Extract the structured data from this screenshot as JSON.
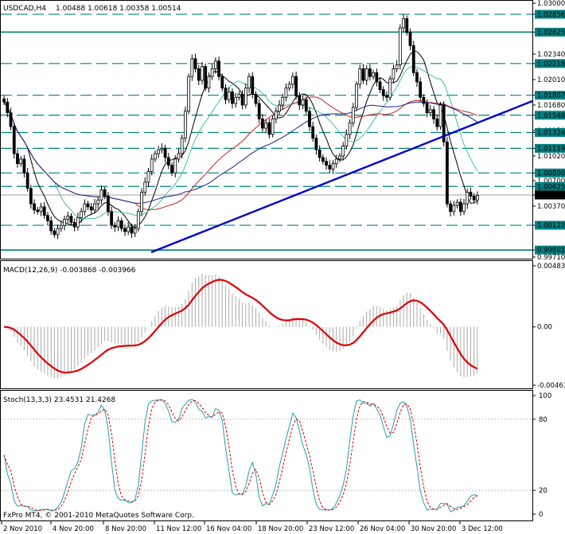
{
  "header": {
    "symbol": "USDCAD,H4",
    "ohlc": "1.00488 1.00618 1.00358 1.00514",
    "macd_label": "MACD(12,26,9) -0.003868 -0.003966",
    "stoch_label": "Stoch(13,3,3) 23.4531 21.4268",
    "copyright": "FxPro MT4, © 2001-2010 MetaQuotes Software Corp."
  },
  "colors": {
    "candle": "#000000",
    "trendline": "#0000cc",
    "level": "#008080",
    "ma_fast": "#000000",
    "ma_mid": "#40c0a0",
    "ma_slow_red": "#cc2020",
    "ma_slow_blue": "#202090",
    "macd_signal": "#dd0000",
    "macd_hist": "#aaaaaa",
    "stoch_main": "#20a0b0",
    "stoch_signal": "#dd0000"
  },
  "chart_data": [
    {
      "type": "candlestick",
      "name": "price",
      "price_axis_ticks": [
        "1.03000",
        "1.02856",
        "1.02625",
        "1.02340",
        "1.02218",
        "1.02010",
        "1.01807",
        "1.01680",
        "1.01548",
        "1.01350",
        "1.01324",
        "1.01119",
        "1.01020",
        "1.00800",
        "1.00700",
        "1.00625",
        "1.00514",
        "1.00370",
        "1.00122",
        "0.99801",
        "0.99710"
      ],
      "highlighted_levels": [
        "1.02856",
        "1.02625",
        "1.02218",
        "1.01807",
        "1.01548",
        "1.01324",
        "1.01119",
        "1.00800",
        "1.00625",
        "1.00122",
        "0.99801"
      ],
      "current_price": "1.00514",
      "x_labels": [
        "2 Nov 2010",
        "4 Nov 20:00",
        "8 Nov 20:00",
        "11 Nov 12:00",
        "16 Nov 04:00",
        "18 Nov 20:00",
        "23 Nov 12:00",
        "26 Nov 04:00",
        "30 Nov 20:00",
        "3 Dec 12:00"
      ],
      "ylim": [
        0.9971,
        1.03
      ],
      "close": [
        1.0172,
        1.0158,
        1.014,
        1.0105,
        1.0092,
        1.0098,
        1.008,
        1.006,
        1.004,
        1.0032,
        1.003,
        1.0036,
        1.0025,
        1.0018,
        1.0005,
        1.0,
        1.0008,
        1.0012,
        1.002,
        1.0024,
        1.0016,
        1.001,
        1.0022,
        1.003,
        1.004,
        1.0036,
        1.0032,
        1.004,
        1.0045,
        1.0058,
        1.005,
        1.003,
        1.0012,
        1.001,
        1.0018,
        1.0008,
        1.0004,
        1.001,
        1.0002,
        1.0008,
        1.003,
        1.0055,
        1.0068,
        1.0082,
        1.0098,
        1.0105,
        1.011,
        1.0112,
        1.01,
        1.009,
        1.008,
        1.0098,
        1.0105,
        1.0125,
        1.016,
        1.0205,
        1.0228,
        1.0215,
        1.02,
        1.0218,
        1.019,
        1.0205,
        1.0215,
        1.0225,
        1.0205,
        1.019,
        1.0175,
        1.0185,
        1.017,
        1.0178,
        1.0182,
        1.0168,
        1.019,
        1.0205,
        1.0182,
        1.017,
        1.015,
        1.0138,
        1.0145,
        1.013,
        1.015,
        1.016,
        1.0168,
        1.0178,
        1.019,
        1.0195,
        1.0205,
        1.018,
        1.0168,
        1.0175,
        1.016,
        1.014,
        1.0125,
        1.011,
        1.01,
        1.0095,
        1.009,
        1.0085,
        1.0092,
        1.0098,
        1.0102,
        1.0115,
        1.013,
        1.0145,
        1.0165,
        1.0195,
        1.0215,
        1.02,
        1.0215,
        1.0205,
        1.021,
        1.0198,
        1.0188,
        1.018,
        1.0178,
        1.0202,
        1.0215,
        1.022,
        1.0268,
        1.028,
        1.0262,
        1.0245,
        1.021,
        1.0198,
        1.0178,
        1.017,
        1.0158,
        1.0162,
        1.015,
        1.014,
        1.0168,
        1.012,
        1.004,
        1.003,
        1.0038,
        1.0042,
        1.003,
        1.004,
        1.0055,
        1.005,
        1.0045,
        1.0051
      ]
    },
    {
      "type": "line",
      "name": "MACD(12,26,9)",
      "yticks": [
        "0.00483",
        "0.00",
        "-0.00461"
      ],
      "ylim": [
        -0.00461,
        0.00483
      ],
      "macd_value": -0.003868,
      "signal_value": -0.003966
    },
    {
      "type": "line",
      "name": "Stoch(13,3,3)",
      "yticks": [
        "100",
        "80",
        "20",
        "0"
      ],
      "ylim": [
        0,
        100
      ],
      "main_value": 23.4531,
      "signal_value": 21.4268
    }
  ]
}
